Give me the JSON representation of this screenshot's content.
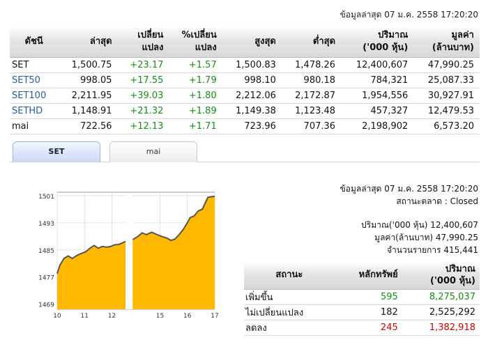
{
  "top_updated": "ข้อมูลล่าสุด 07 ม.ค. 2558 17:20:20",
  "index_table": {
    "headers": [
      [
        "ดัชนี"
      ],
      [
        "ล่าสุด"
      ],
      [
        "เปลี่ยน",
        "แปลง"
      ],
      [
        "%เปลี่ยน",
        "แปลง"
      ],
      [
        "สูงสุด"
      ],
      [
        "ต่ำสุด"
      ],
      [
        "ปริมาณ",
        "('000 หุ้น)"
      ],
      [
        "มูลค่า",
        "(ล้านบาท)"
      ]
    ],
    "rows": [
      {
        "name": "SET",
        "link": false,
        "last": "1,500.75",
        "change": "+23.17",
        "pct": "+1.57",
        "high": "1,500.83",
        "low": "1,478.26",
        "volume": "12,400,607",
        "value": "47,990.25"
      },
      {
        "name": "SET50",
        "link": true,
        "last": "998.05",
        "change": "+17.55",
        "pct": "+1.79",
        "high": "998.10",
        "low": "980.18",
        "volume": "784,321",
        "value": "25,087.33"
      },
      {
        "name": "SET100",
        "link": true,
        "last": "2,211.95",
        "change": "+39.03",
        "pct": "+1.80",
        "high": "2,212.06",
        "low": "2,172.87",
        "volume": "1,954,556",
        "value": "30,927.91"
      },
      {
        "name": "SETHD",
        "link": true,
        "last": "1,148.91",
        "change": "+21.32",
        "pct": "+1.89",
        "high": "1,149.38",
        "low": "1,123.48",
        "volume": "457,327",
        "value": "12,479.53"
      },
      {
        "name": "mai",
        "link": false,
        "last": "722.56",
        "change": "+12.13",
        "pct": "+1.71",
        "high": "723.96",
        "low": "707.36",
        "volume": "2,198,902",
        "value": "6,573.20"
      }
    ]
  },
  "tabs": [
    {
      "label": "SET",
      "active": true
    },
    {
      "label": "mai",
      "active": false
    }
  ],
  "info": {
    "updated": "ข้อมูลล่าสุด 07 ม.ค. 2558 17:20:20",
    "market_status": "สถานะตลาด : Closed",
    "volume": "ปริมาณ('000 หุ้น) 12,400,607",
    "value": "มูลค่า(ล้านบาท) 47,990.25",
    "transactions": "จำนวนรายการ 415,441"
  },
  "breadth_table": {
    "headers": [
      [
        "สถานะ"
      ],
      [
        "หลักทรัพย์"
      ],
      [
        "ปริมาณ",
        "('000 หุ้น)"
      ]
    ],
    "rows": [
      {
        "status": "เพิ่มขึ้น",
        "securities": "595",
        "volume": "8,275,037",
        "color": "#178f17"
      },
      {
        "status": "ไม่เปลี่ยนแปลง",
        "securities": "182",
        "volume": "2,525,292",
        "color": "#111111"
      },
      {
        "status": "ลดลง",
        "securities": "245",
        "volume": "1,382,918",
        "color": "#d20000"
      }
    ]
  },
  "chart_data": {
    "type": "area",
    "fill_color": "#ffb800",
    "line_color": "#555555",
    "ylim": [
      1467.5,
      1502
    ],
    "yticks": [
      1469,
      1477,
      1485,
      1493,
      1501
    ],
    "xticks": [
      {
        "label": "10",
        "t": 10
      },
      {
        "label": "11",
        "t": 11
      },
      {
        "label": "12",
        "t": 12
      },
      {
        "label": "15",
        "t": 15
      },
      {
        "label": "16",
        "t": 16
      },
      {
        "label": "17",
        "t": 17
      }
    ],
    "series": [
      {
        "segments": [
          {
            "points": [
              [
                10.0,
                1478.0
              ],
              [
                10.1,
                1480.5
              ],
              [
                10.25,
                1482.5
              ],
              [
                10.4,
                1483.2
              ],
              [
                10.55,
                1482.5
              ],
              [
                10.75,
                1483.5
              ],
              [
                10.9,
                1484.0
              ],
              [
                11.05,
                1484.5
              ],
              [
                11.2,
                1485.5
              ],
              [
                11.35,
                1486.3
              ],
              [
                11.5,
                1485.5
              ],
              [
                11.65,
                1486.0
              ],
              [
                11.8,
                1485.8
              ],
              [
                11.95,
                1486.0
              ],
              [
                12.1,
                1486.5
              ],
              [
                12.25,
                1486.6
              ],
              [
                12.5,
                1487.5
              ]
            ]
          },
          {
            "points": [
              [
                14.0,
                1488.0
              ],
              [
                14.2,
                1489.0
              ],
              [
                14.35,
                1490.0
              ],
              [
                14.5,
                1489.5
              ],
              [
                14.7,
                1490.2
              ],
              [
                14.9,
                1489.5
              ],
              [
                15.05,
                1489.0
              ],
              [
                15.25,
                1488.5
              ],
              [
                15.4,
                1487.8
              ],
              [
                15.55,
                1488.2
              ],
              [
                15.7,
                1489.5
              ],
              [
                15.85,
                1491.0
              ],
              [
                16.0,
                1493.0
              ],
              [
                16.1,
                1494.5
              ],
              [
                16.25,
                1495.0
              ],
              [
                16.4,
                1496.5
              ],
              [
                16.55,
                1497.0
              ],
              [
                16.75,
                1500.5
              ],
              [
                17.0,
                1500.8
              ]
            ]
          }
        ]
      }
    ]
  }
}
